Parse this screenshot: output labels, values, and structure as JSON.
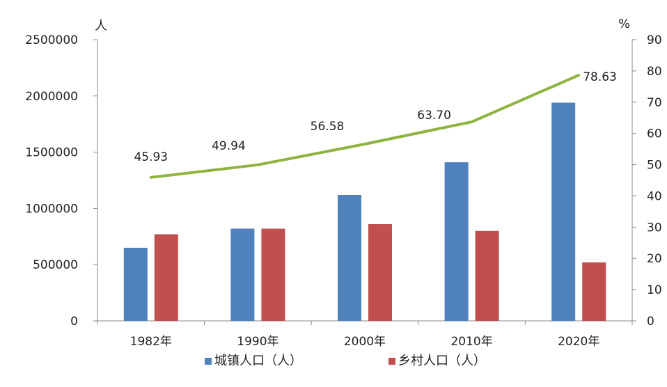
{
  "chart_data": {
    "type": "bar",
    "categories": [
      "1982年",
      "1990年",
      "2000年",
      "2010年",
      "2020年"
    ],
    "series": [
      {
        "name": "城镇人口（人）",
        "type": "bar",
        "axis": "left",
        "color": "#4F81BD",
        "values": [
          650000,
          820000,
          1120000,
          1410000,
          1940000
        ]
      },
      {
        "name": "乡村人口（人）",
        "type": "bar",
        "axis": "left",
        "color": "#C0504D",
        "values": [
          770000,
          820000,
          860000,
          800000,
          520000
        ]
      },
      {
        "type": "line",
        "axis": "right",
        "color": "#8DB43E",
        "values": [
          45.93,
          49.94,
          56.58,
          63.7,
          78.63
        ],
        "labels": [
          "45.93",
          "49.94",
          "56.58",
          "63.70",
          "78.63"
        ]
      }
    ],
    "y_left": {
      "unit": "人",
      "ylim": [
        0,
        2500000
      ],
      "ticks": [
        "0",
        "500000",
        "1000000",
        "1500000",
        "2000000",
        "2500000"
      ]
    },
    "y_right": {
      "unit": "%",
      "ylim": [
        0,
        90
      ],
      "ticks": [
        "0",
        "10",
        "20",
        "30",
        "40",
        "50",
        "60",
        "70",
        "80",
        "90"
      ]
    },
    "grid": false,
    "legend_position": "bottom"
  }
}
